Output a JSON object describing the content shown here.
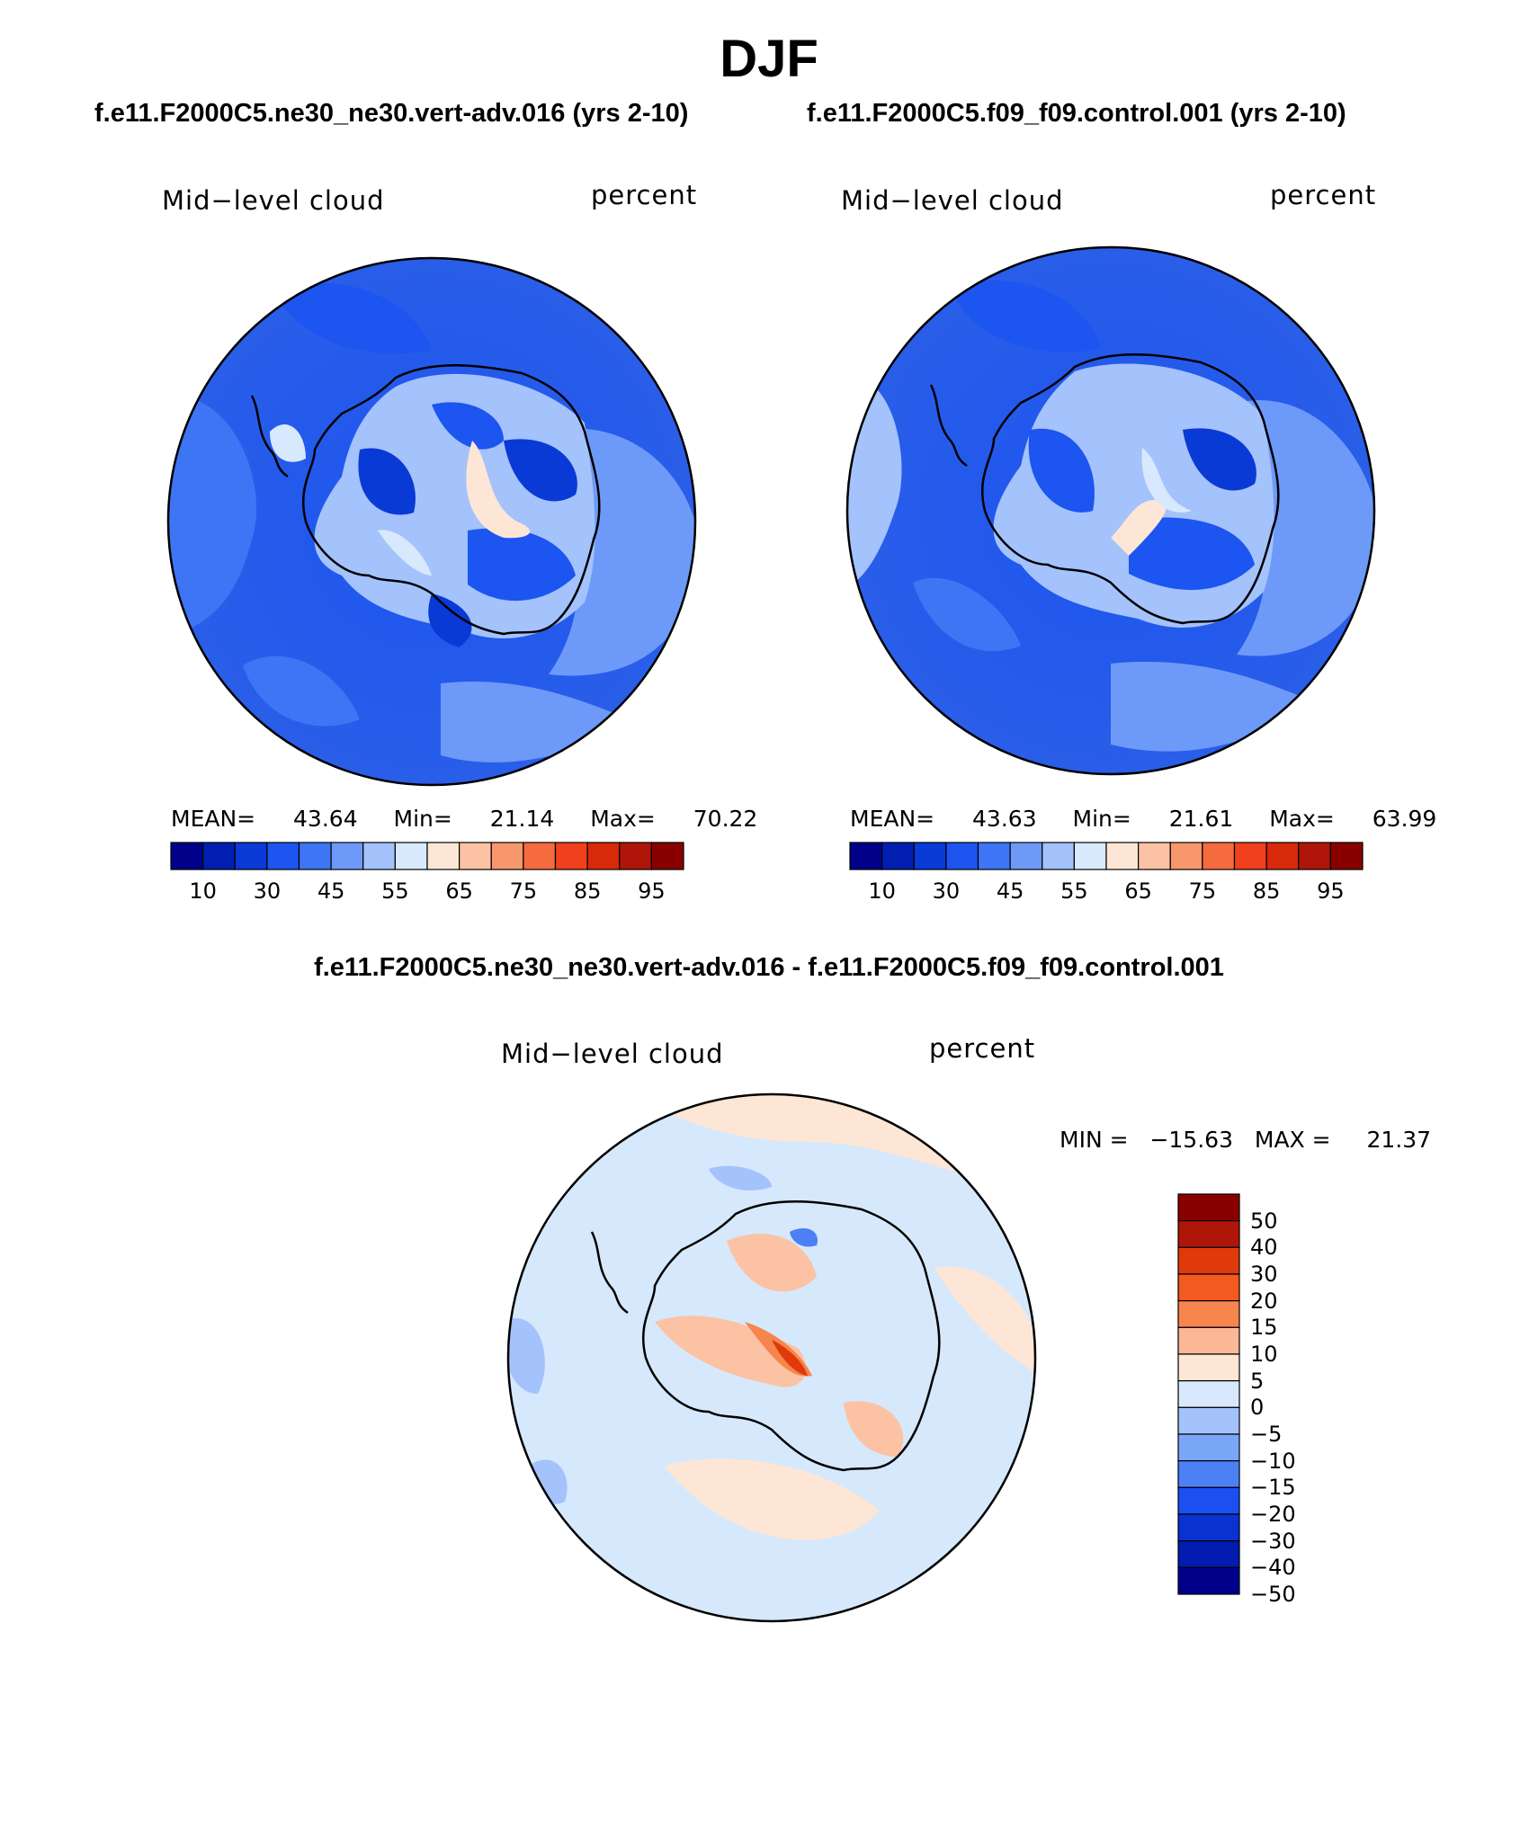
{
  "figure": {
    "title": "DJF",
    "colors": {
      "boundary": "#000000",
      "background": "#ffffff"
    }
  },
  "panels": [
    {
      "subtitle": "f.e11.F2000C5.ne30_ne30.vert-adv.016 (yrs 2-10)",
      "variable": "Mid−level cloud",
      "units": "percent",
      "stats": {
        "mean_label": "MEAN=",
        "mean": "43.64",
        "min_label": "Min=",
        "min": "21.14",
        "max_label": "Max=",
        "max": "70.22"
      },
      "ocean_color": "#2a5ee8"
    },
    {
      "subtitle": "f.e11.F2000C5.f09_f09.control.001 (yrs 2-10)",
      "variable": "Mid−level cloud",
      "units": "percent",
      "stats": {
        "mean_label": "MEAN=",
        "mean": "43.63",
        "min_label": "Min=",
        "min": "21.61",
        "max_label": "Max=",
        "max": "63.99"
      },
      "ocean_color": "#2a5ee8"
    }
  ],
  "diff_panel": {
    "subtitle": "f.e11.F2000C5.ne30_ne30.vert-adv.016 - f.e11.F2000C5.f09_f09.control.001",
    "variable": "Mid−level cloud",
    "units": "percent",
    "stats": {
      "min_label": "MIN =",
      "min": "−15.63",
      "max_label": "MAX =",
      "max": "21.37"
    },
    "ocean_color": "#d6e8fb"
  },
  "colorbar_main": {
    "colors": [
      "#00008a",
      "#001fb0",
      "#0a3ad6",
      "#1c55f0",
      "#3d75f5",
      "#6d9af8",
      "#a4c2fb",
      "#d8e8fd",
      "#fde6d6",
      "#fbc2a4",
      "#f8976c",
      "#f56b3d",
      "#f0401c",
      "#d62a0a",
      "#b0150a",
      "#8a0000"
    ],
    "tick_labels": [
      "10",
      "30",
      "45",
      "55",
      "65",
      "75",
      "85",
      "95"
    ]
  },
  "colorbar_diff": {
    "colors_top_to_bottom": [
      "#8a0000",
      "#b0150a",
      "#e03a0a",
      "#f25a20",
      "#f8844e",
      "#fbb896",
      "#fde6d6",
      "#d8e8fd",
      "#a4c2fb",
      "#7aa6f8",
      "#4d7ff5",
      "#1c4ff0",
      "#0a32d0",
      "#021cb0",
      "#00008a"
    ],
    "tick_labels_top_to_bottom": [
      "50",
      "40",
      "30",
      "20",
      "15",
      "10",
      "5",
      "0",
      "−5",
      "−10",
      "−15",
      "−20",
      "−30",
      "−40",
      "−50"
    ]
  }
}
